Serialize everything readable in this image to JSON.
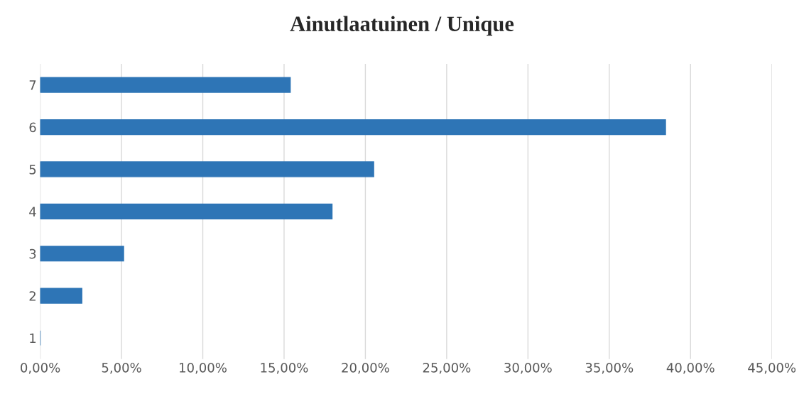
{
  "chart_data": {
    "type": "bar",
    "orientation": "horizontal",
    "title": "Ainutlaatuinen / Unique",
    "categories": [
      "7",
      "6",
      "5",
      "4",
      "3",
      "2",
      "1"
    ],
    "values": [
      15.38,
      38.46,
      20.51,
      17.95,
      5.13,
      2.56,
      0
    ],
    "color": "#2e75b6",
    "xlim": [
      0,
      45
    ],
    "xticks": [
      {
        "value": 0,
        "label": "0,00%"
      },
      {
        "value": 5,
        "label": "5,00%"
      },
      {
        "value": 10,
        "label": "10,00%"
      },
      {
        "value": 15,
        "label": "15,00%"
      },
      {
        "value": 20,
        "label": "20,00%"
      },
      {
        "value": 25,
        "label": "25,00%"
      },
      {
        "value": 30,
        "label": "30,00%"
      },
      {
        "value": 35,
        "label": "35,00%"
      },
      {
        "value": 40,
        "label": "40,00%"
      },
      {
        "value": 45,
        "label": "45,00%"
      }
    ],
    "grid": "x"
  }
}
